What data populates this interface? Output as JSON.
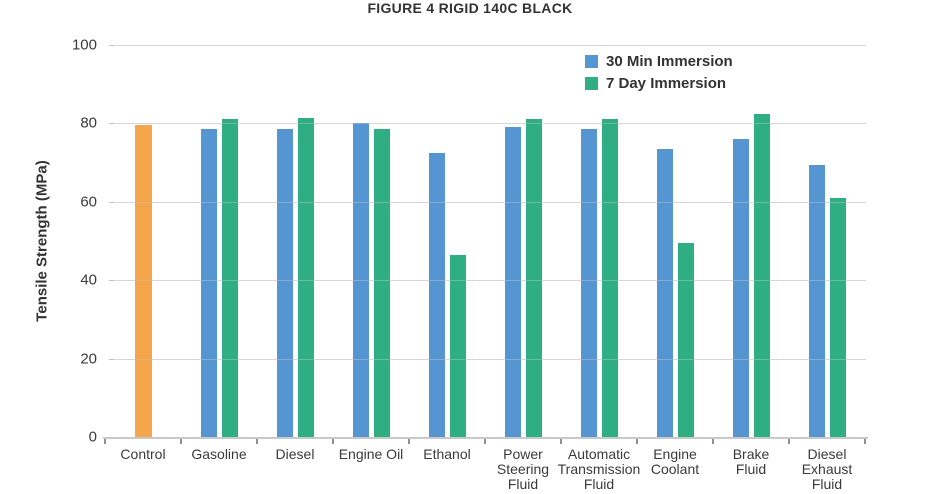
{
  "chart_data": {
    "type": "bar",
    "title": "FIGURE 4 RIGID 140C BLACK",
    "ylabel": "Tensile Strength (MPa)",
    "xlabel": "",
    "ylim": [
      0,
      100
    ],
    "yticks": [
      0,
      20,
      40,
      60,
      80,
      100
    ],
    "grid": true,
    "legend_position": "top-right-inside",
    "categories": [
      "Control",
      "Gasoline",
      "Diesel",
      "Engine Oil",
      "Ethanol",
      "Power\nSteering\nFluid",
      "Automatic\nTransmission\nFluid",
      "Engine\nCoolant",
      "Brake\nFluid",
      "Diesel\nExhaust\nFluid"
    ],
    "series": [
      {
        "name": "Control",
        "color": "#F5A64D",
        "in_legend": false,
        "values": [
          79.5,
          null,
          null,
          null,
          null,
          null,
          null,
          null,
          null,
          null
        ]
      },
      {
        "name": "30 Min Immersion",
        "color": "#5596D2",
        "in_legend": true,
        "values": [
          null,
          78.5,
          78.5,
          80,
          72.5,
          79,
          78.5,
          73.5,
          76,
          69.5
        ]
      },
      {
        "name": "7 Day Immersion",
        "color": "#2FAE84",
        "in_legend": true,
        "values": [
          null,
          81,
          81.5,
          78.5,
          46.5,
          81,
          81,
          49.5,
          82.5,
          61
        ]
      }
    ]
  },
  "style": {
    "text_color": "#3b3b3b",
    "gridline_color": "#e4e4e4",
    "axis_line_color": "#c9c9c9",
    "background": "#ffffff"
  }
}
